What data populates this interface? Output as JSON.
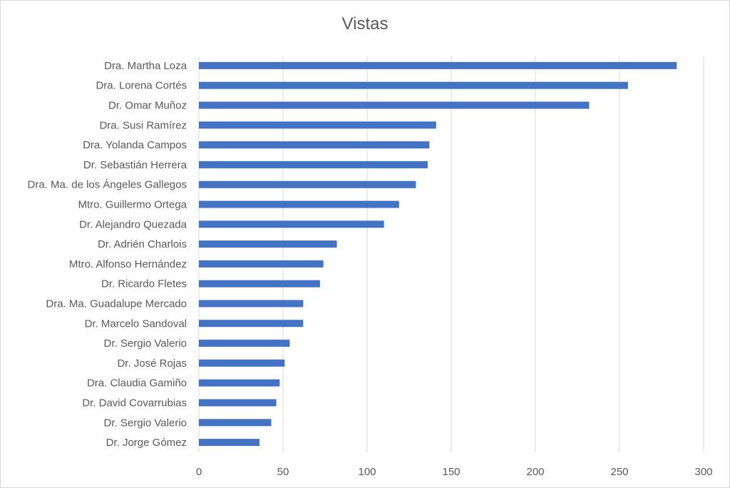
{
  "chart_data": {
    "type": "bar",
    "orientation": "horizontal",
    "title": "Vistas",
    "xlabel": "",
    "ylabel": "",
    "xlim": [
      0,
      300
    ],
    "xticks": [
      0,
      50,
      100,
      150,
      200,
      250,
      300
    ],
    "grid": "vertical",
    "legend": "none",
    "bar_color": "#4472C4",
    "categories": [
      "Dra. Martha Loza",
      "Dra. Lorena Cortés",
      "Dr. Omar Muñoz",
      "Dra. Susi Ramírez",
      "Dra. Yolanda Campos",
      "Dr. Sebastián Herrera",
      "Dra. Ma. de los Ángeles Gallegos",
      "Mtro. Guillermo Ortega",
      "Dr. Alejandro Quezada",
      "Dr. Adrién Charlois",
      "Mtro. Alfonso Hernández",
      "Dr. Ricardo Fletes",
      "Dra. Ma. Guadalupe Mercado",
      "Dr. Marcelo Sandoval",
      "Dr. Sergio Valerio",
      "Dr. José Rojas",
      "Dra. Claudia Gamiño",
      "Dr. David Covarrubias",
      "Dr. Sergio Valerio",
      "Dr. Jorge Gómez"
    ],
    "values": [
      284,
      255,
      232,
      141,
      137,
      136,
      129,
      119,
      110,
      82,
      74,
      72,
      62,
      62,
      54,
      51,
      48,
      46,
      43,
      36
    ]
  }
}
